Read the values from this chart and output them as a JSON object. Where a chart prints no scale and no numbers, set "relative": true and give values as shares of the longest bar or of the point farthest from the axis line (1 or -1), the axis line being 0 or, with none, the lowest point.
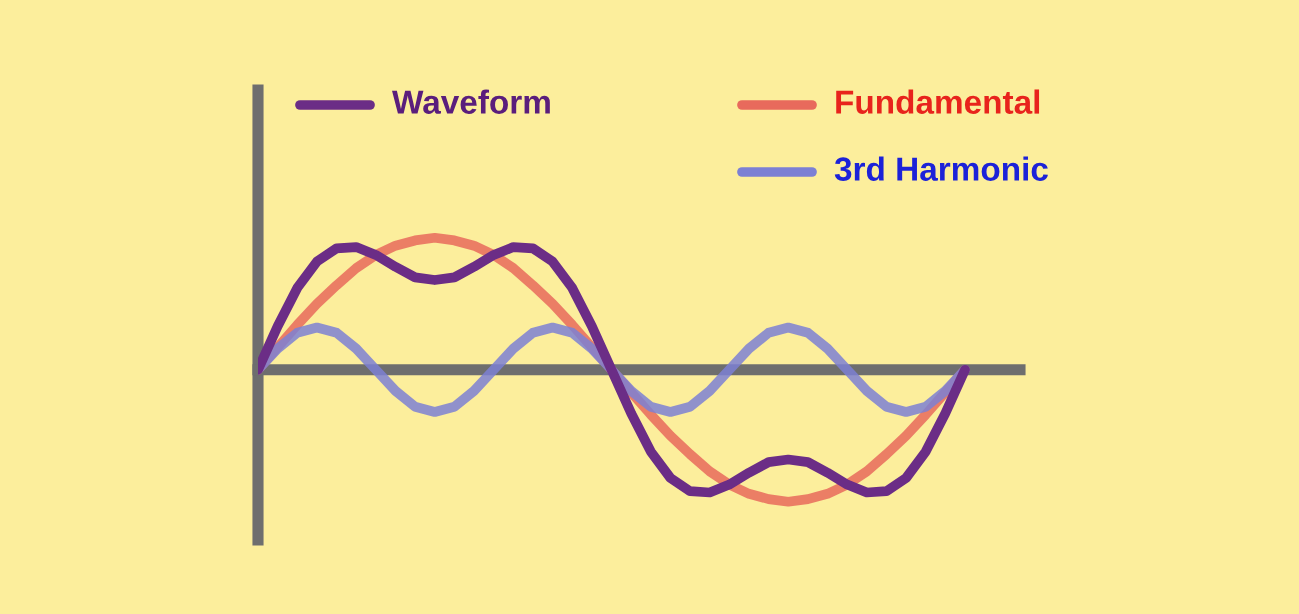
{
  "chart_data": {
    "type": "line",
    "relative": true,
    "legend": "top",
    "line_style": "solid",
    "marker": "none",
    "categories": [
      null,
      null,
      null,
      null,
      null,
      null,
      null,
      null,
      null,
      null,
      null,
      null,
      null,
      null,
      null,
      null,
      null,
      null,
      null,
      null,
      null,
      null,
      null,
      null,
      null,
      null,
      null,
      null,
      null,
      null,
      null,
      null,
      null,
      null,
      null,
      null,
      null
    ],
    "series": [
      {
        "name": "Waveform",
        "color": "#6b2d86",
        "values": [
          0,
          0.33,
          0.62,
          0.82,
          0.92,
          0.93,
          0.87,
          0.78,
          0.7,
          0.68,
          0.7,
          0.78,
          0.87,
          0.93,
          0.92,
          0.82,
          0.62,
          0.33,
          0,
          -0.33,
          -0.62,
          -0.82,
          -0.92,
          -0.93,
          -0.87,
          -0.78,
          -0.7,
          -0.68,
          -0.7,
          -0.78,
          -0.87,
          -0.93,
          -0.92,
          -0.82,
          -0.62,
          -0.33,
          0
        ]
      },
      {
        "name": "Fundamental",
        "color": "#e86a5c",
        "values": [
          0,
          0.17,
          0.34,
          0.5,
          0.64,
          0.77,
          0.87,
          0.94,
          0.98,
          1,
          0.98,
          0.94,
          0.87,
          0.77,
          0.64,
          0.5,
          0.34,
          0.17,
          0,
          -0.17,
          -0.34,
          -0.5,
          -0.64,
          -0.77,
          -0.87,
          -0.94,
          -0.98,
          -1,
          -0.98,
          -0.94,
          -0.87,
          -0.77,
          -0.64,
          -0.5,
          -0.34,
          -0.17,
          0
        ]
      },
      {
        "name": "3rd Harmonic",
        "color": "#7c80d4",
        "values": [
          0,
          0.16,
          0.28,
          0.32,
          0.28,
          0.16,
          0,
          -0.16,
          -0.28,
          -0.32,
          -0.28,
          -0.16,
          0,
          0.16,
          0.28,
          0.32,
          0.28,
          0.16,
          0,
          -0.16,
          -0.28,
          -0.32,
          -0.28,
          -0.16,
          0,
          0.16,
          0.28,
          0.32,
          0.28,
          0.16,
          0,
          -0.16,
          -0.28,
          -0.32,
          -0.28,
          -0.16,
          0
        ]
      }
    ]
  }
}
